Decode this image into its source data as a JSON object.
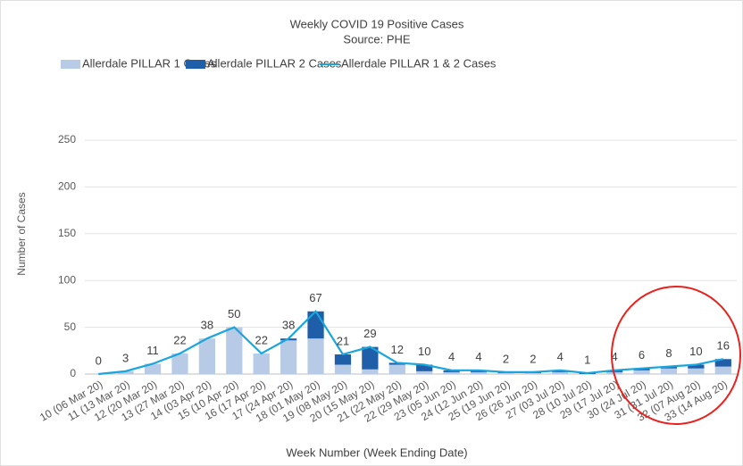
{
  "chart_data": {
    "type": "combo",
    "title": "Weekly COVID 19 Positive Cases",
    "subtitle": "Source: PHE",
    "x_label": "Week Number (Week Ending Date)",
    "y_label": "Number of Cases",
    "categories": [
      "10 (06 Mar 20)",
      "11 (13 Mar 20)",
      "12 (20 Mar 20)",
      "13 (27 Mar 20)",
      "14 (03 Apr 20)",
      "15 (10 Apr 20)",
      "16 (17 Apr 20)",
      "17 (24 Apr 20)",
      "18 (01 May 20)",
      "19 (08 May 20)",
      "20 (15 May 20)",
      "21 (22 May 20)",
      "22 (29 May 20)",
      "23 (05 Jun 20)",
      "24 (12 Jun 20)",
      "25 (19 Jun 20)",
      "26 (26 Jun 20)",
      "27 (03 Jul 20)",
      "28 (10 Jul 20)",
      "29 (17 Jul 20)",
      "30 (24 Jul 20)",
      "31 (31 Jul 20)",
      "32 (07 Aug 20)",
      "33 (14 Aug 20)"
    ],
    "series": [
      {
        "name": "Allerdale PILLAR 1 Cases",
        "type": "bar",
        "color": "#b7cae6",
        "values": [
          0,
          3,
          11,
          22,
          38,
          50,
          22,
          36,
          38,
          10,
          5,
          10,
          3,
          2,
          2,
          1,
          1,
          2,
          0,
          2,
          4,
          6,
          6,
          8
        ]
      },
      {
        "name": "Allerdale PILLAR 2 Cases",
        "type": "bar",
        "color": "#1f5ea8",
        "values": [
          0,
          0,
          0,
          0,
          0,
          0,
          0,
          2,
          29,
          11,
          24,
          2,
          7,
          2,
          2,
          1,
          1,
          2,
          1,
          2,
          2,
          2,
          4,
          8
        ]
      },
      {
        "name": "Allerdale PILLAR 1 & 2 Cases",
        "type": "line",
        "color": "#1aa6dc",
        "values": [
          0,
          3,
          11,
          22,
          38,
          50,
          22,
          38,
          67,
          21,
          29,
          12,
          10,
          4,
          4,
          2,
          2,
          4,
          1,
          4,
          6,
          8,
          10,
          16
        ]
      }
    ],
    "stacked": true,
    "ylim": [
      0,
      250
    ],
    "yticks": [
      0,
      50,
      100,
      150,
      200,
      250
    ],
    "grid": true
  }
}
